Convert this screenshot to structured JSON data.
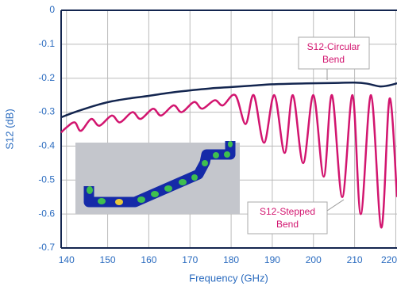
{
  "chart_data": {
    "type": "line",
    "xlabel": "Frequency (GHz)",
    "ylabel": "S12 (dB)",
    "xlim": [
      138.7,
      220.3
    ],
    "ylim": [
      -0.7,
      0
    ],
    "xticks": [
      140,
      150,
      160,
      170,
      180,
      190,
      200,
      210,
      220
    ],
    "yticks": [
      0,
      -0.1,
      -0.2,
      -0.3,
      -0.4,
      -0.5,
      -0.6,
      -0.7
    ],
    "grid": true,
    "series": [
      {
        "name": "S12-Circular Bend",
        "color": "#13254f",
        "x": [
          138.7,
          142,
          145,
          148,
          151,
          155,
          160,
          165,
          170,
          175,
          180,
          185,
          190,
          195,
          200,
          205,
          210,
          213,
          216,
          218,
          220.3
        ],
        "values": [
          -0.315,
          -0.3,
          -0.288,
          -0.277,
          -0.268,
          -0.26,
          -0.252,
          -0.243,
          -0.236,
          -0.23,
          -0.226,
          -0.222,
          -0.218,
          -0.216,
          -0.215,
          -0.214,
          -0.213,
          -0.216,
          -0.224,
          -0.222,
          -0.215
        ]
      },
      {
        "name": "S12-Stepped Bend",
        "color": "#d2156f",
        "x": [
          138.7,
          140,
          142,
          143.5,
          146,
          148,
          151,
          153,
          156,
          158,
          161,
          163,
          166,
          168,
          171,
          173,
          176,
          178,
          181,
          183.5,
          185.5,
          188,
          190.5,
          193,
          195,
          197.5,
          200,
          202.5,
          204.5,
          207,
          209.5,
          211.5,
          214,
          216.5,
          218.5,
          220.3
        ],
        "values": [
          -0.36,
          -0.345,
          -0.33,
          -0.355,
          -0.32,
          -0.34,
          -0.31,
          -0.33,
          -0.3,
          -0.32,
          -0.29,
          -0.31,
          -0.28,
          -0.3,
          -0.27,
          -0.29,
          -0.265,
          -0.28,
          -0.25,
          -0.335,
          -0.25,
          -0.39,
          -0.25,
          -0.42,
          -0.25,
          -0.45,
          -0.25,
          -0.49,
          -0.25,
          -0.55,
          -0.25,
          -0.6,
          -0.25,
          -0.64,
          -0.26,
          -0.55
        ]
      }
    ],
    "annotations": [
      {
        "lines": [
          "S12-Circular",
          "Bend"
        ]
      },
      {
        "lines": [
          "S12-Stepped",
          "Bend"
        ]
      }
    ]
  }
}
